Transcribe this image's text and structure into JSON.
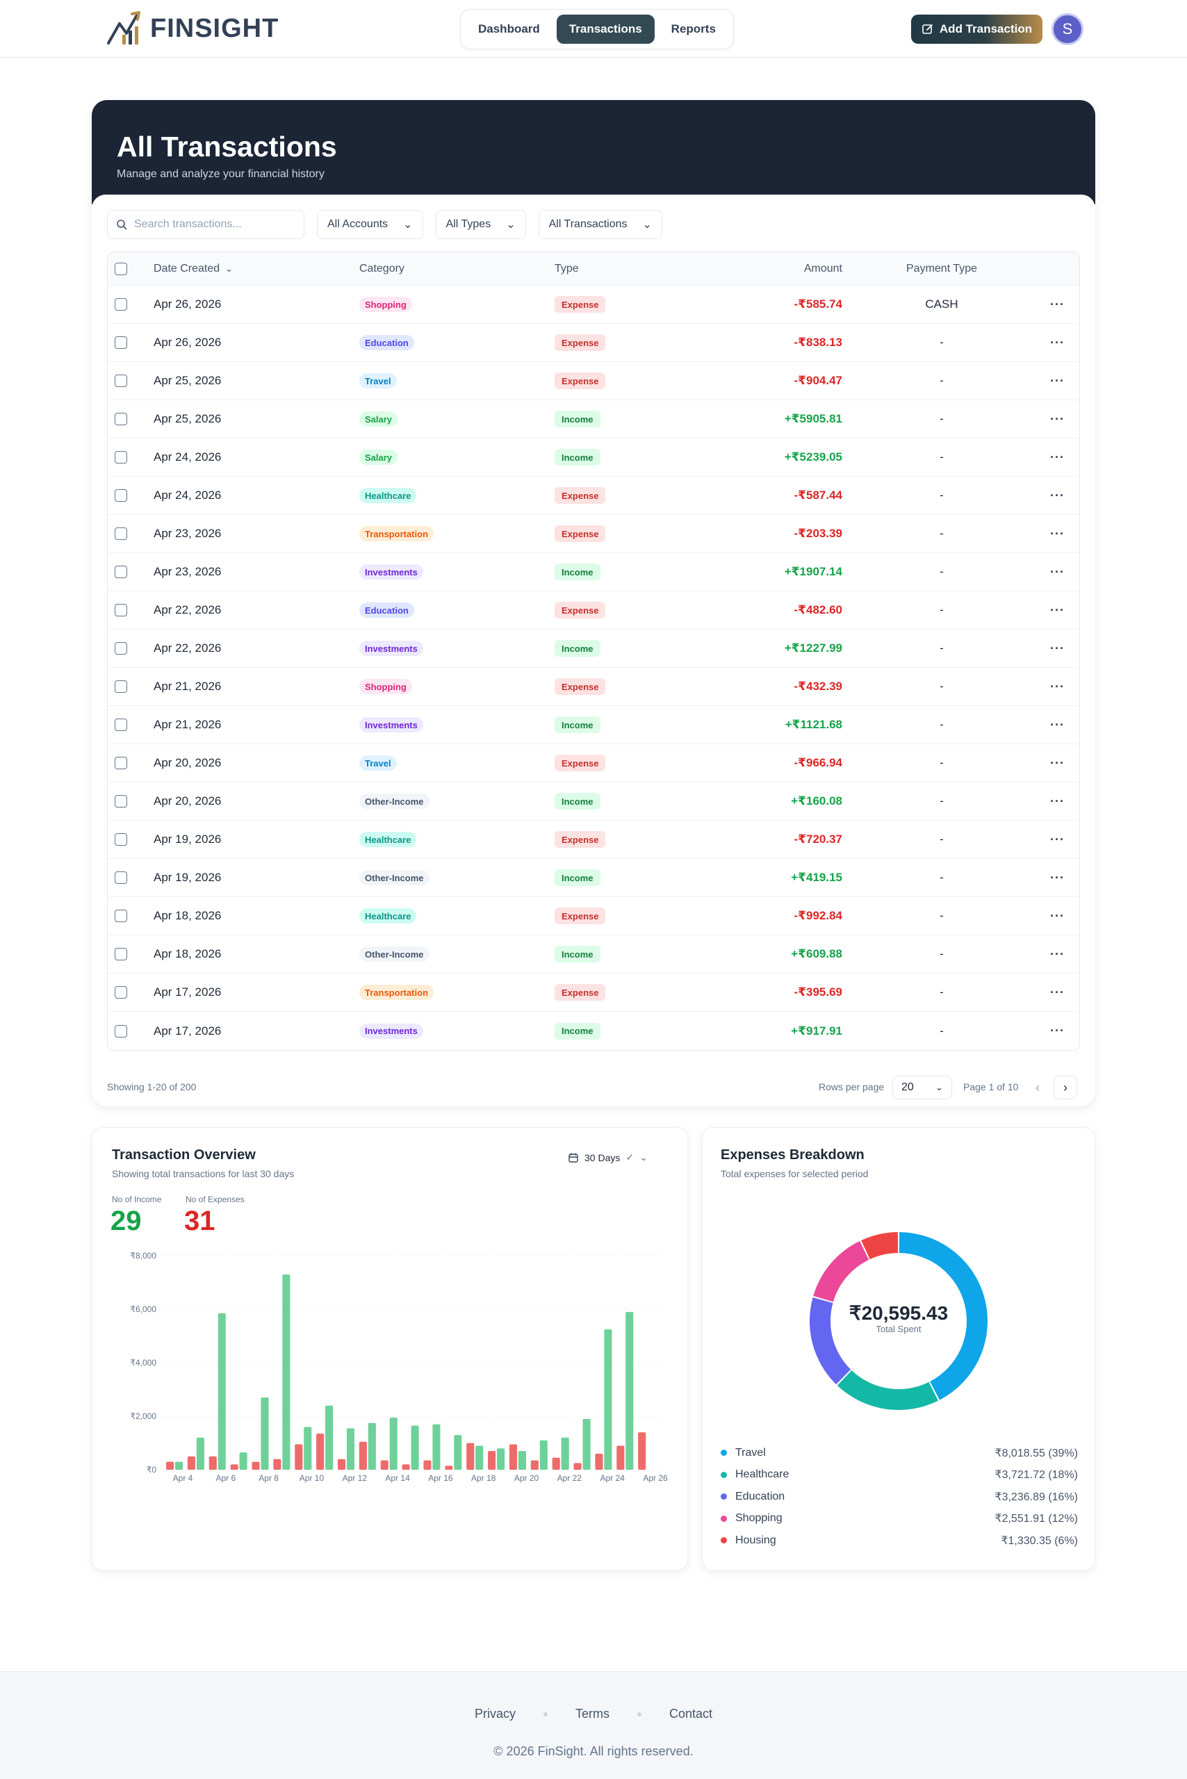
{
  "brand": {
    "name": "FINSIGHT"
  },
  "nav": {
    "items": [
      "Dashboard",
      "Transactions",
      "Reports"
    ],
    "active": 1
  },
  "header": {
    "add_label": "Add Transaction",
    "avatar_initial": "S"
  },
  "page": {
    "title": "All Transactions",
    "subtitle": "Manage and analyze your financial history"
  },
  "filters": {
    "search_placeholder": "Search transactions...",
    "accounts": "All Accounts",
    "types": "All Types",
    "transactions": "All Transactions"
  },
  "table": {
    "headers": {
      "date": "Date Created",
      "category": "Category",
      "type": "Type",
      "amount": "Amount",
      "payment": "Payment Type"
    },
    "rows": [
      {
        "date": "Apr 26, 2026",
        "category": "Shopping",
        "type": "Expense",
        "amount": "-₹585.74",
        "payment": "CASH"
      },
      {
        "date": "Apr 26, 2026",
        "category": "Education",
        "type": "Expense",
        "amount": "-₹838.13",
        "payment": "-"
      },
      {
        "date": "Apr 25, 2026",
        "category": "Travel",
        "type": "Expense",
        "amount": "-₹904.47",
        "payment": "-"
      },
      {
        "date": "Apr 25, 2026",
        "category": "Salary",
        "type": "Income",
        "amount": "+₹5905.81",
        "payment": "-"
      },
      {
        "date": "Apr 24, 2026",
        "category": "Salary",
        "type": "Income",
        "amount": "+₹5239.05",
        "payment": "-"
      },
      {
        "date": "Apr 24, 2026",
        "category": "Healthcare",
        "type": "Expense",
        "amount": "-₹587.44",
        "payment": "-"
      },
      {
        "date": "Apr 23, 2026",
        "category": "Transportation",
        "type": "Expense",
        "amount": "-₹203.39",
        "payment": "-"
      },
      {
        "date": "Apr 23, 2026",
        "category": "Investments",
        "type": "Income",
        "amount": "+₹1907.14",
        "payment": "-"
      },
      {
        "date": "Apr 22, 2026",
        "category": "Education",
        "type": "Expense",
        "amount": "-₹482.60",
        "payment": "-"
      },
      {
        "date": "Apr 22, 2026",
        "category": "Investments",
        "type": "Income",
        "amount": "+₹1227.99",
        "payment": "-"
      },
      {
        "date": "Apr 21, 2026",
        "category": "Shopping",
        "type": "Expense",
        "amount": "-₹432.39",
        "payment": "-"
      },
      {
        "date": "Apr 21, 2026",
        "category": "Investments",
        "type": "Income",
        "amount": "+₹1121.68",
        "payment": "-"
      },
      {
        "date": "Apr 20, 2026",
        "category": "Travel",
        "type": "Expense",
        "amount": "-₹966.94",
        "payment": "-"
      },
      {
        "date": "Apr 20, 2026",
        "category": "Other-Income",
        "type": "Income",
        "amount": "+₹160.08",
        "payment": "-"
      },
      {
        "date": "Apr 19, 2026",
        "category": "Healthcare",
        "type": "Expense",
        "amount": "-₹720.37",
        "payment": "-"
      },
      {
        "date": "Apr 19, 2026",
        "category": "Other-Income",
        "type": "Income",
        "amount": "+₹419.15",
        "payment": "-"
      },
      {
        "date": "Apr 18, 2026",
        "category": "Healthcare",
        "type": "Expense",
        "amount": "-₹992.84",
        "payment": "-"
      },
      {
        "date": "Apr 18, 2026",
        "category": "Other-Income",
        "type": "Income",
        "amount": "+₹609.88",
        "payment": "-"
      },
      {
        "date": "Apr 17, 2026",
        "category": "Transportation",
        "type": "Expense",
        "amount": "-₹395.69",
        "payment": "-"
      },
      {
        "date": "Apr 17, 2026",
        "category": "Investments",
        "type": "Income",
        "amount": "+₹917.91",
        "payment": "-"
      }
    ]
  },
  "category_colors": {
    "Shopping": {
      "bg": "#fce7f3",
      "fg": "#db2777"
    },
    "Education": {
      "bg": "#e0e7ff",
      "fg": "#4f46e5"
    },
    "Travel": {
      "bg": "#e0f2fe",
      "fg": "#0284c7"
    },
    "Salary": {
      "bg": "#dcfce7",
      "fg": "#16a34a"
    },
    "Healthcare": {
      "bg": "#ccfbf1",
      "fg": "#0d9488"
    },
    "Transportation": {
      "bg": "#ffedd5",
      "fg": "#ea580c"
    },
    "Investments": {
      "bg": "#ede9fe",
      "fg": "#6d28d9"
    },
    "Other-Income": {
      "bg": "#f1f5f9",
      "fg": "#475569"
    }
  },
  "pagination": {
    "showing": "Showing 1-20 of 200",
    "rows_label": "Rows per page",
    "rows_value": "20",
    "page_label": "Page 1 of 10"
  },
  "overview": {
    "title": "Transaction Overview",
    "subtitle": "Showing total transactions for last 30 days",
    "range": "30 Days",
    "income_label": "No of Income",
    "income_count": "29",
    "expense_label": "No of Expenses",
    "expense_count": "31"
  },
  "breakdown": {
    "title": "Expenses Breakdown",
    "subtitle": "Total expenses for selected period",
    "total": "₹20,595.43",
    "total_label": "Total Spent",
    "items": [
      {
        "name": "Travel",
        "value": "₹8,018.55 (39%)",
        "color": "#0ea5e9"
      },
      {
        "name": "Healthcare",
        "value": "₹3,721.72 (18%)",
        "color": "#14b8a6"
      },
      {
        "name": "Education",
        "value": "₹3,236.89 (16%)",
        "color": "#6366f1"
      },
      {
        "name": "Shopping",
        "value": "₹2,551.91 (12%)",
        "color": "#ec4899"
      },
      {
        "name": "Housing",
        "value": "₹1,330.35 (6%)",
        "color": "#ef4444"
      }
    ]
  },
  "chart_data": [
    {
      "type": "bar",
      "title": "Transaction Overview",
      "x_labels": [
        "Apr 4",
        "Apr 6",
        "Apr 8",
        "Apr 10",
        "Apr 12",
        "Apr 14",
        "Apr 16",
        "Apr 18",
        "Apr 20",
        "Apr 22",
        "Apr 24",
        "Apr 26"
      ],
      "y_ticks": [
        "₹0",
        "₹2,000",
        "₹4,000",
        "₹6,000",
        "₹8,000"
      ],
      "ylim": [
        0,
        8000
      ],
      "grid": true,
      "colors": {
        "income": "#6fd19a",
        "expense": "#ee6b6b"
      },
      "series": [
        {
          "kind": "income",
          "values": [
            300,
            1200,
            5850,
            650,
            2700,
            7300,
            1600,
            2400,
            1550,
            1750,
            1950,
            1650,
            1700,
            1300,
            900,
            800,
            700,
            1100,
            1200,
            1900,
            5250,
            5900
          ]
        },
        {
          "kind": "expense",
          "values": [
            300,
            500,
            500,
            200,
            300,
            400,
            950,
            1350,
            400,
            1050,
            350,
            200,
            350,
            150,
            1000,
            700,
            950,
            350,
            450,
            250,
            600,
            900,
            1400
          ]
        }
      ]
    },
    {
      "type": "pie",
      "title": "Expenses Breakdown",
      "labels": [
        "Travel",
        "Healthcare",
        "Education",
        "Shopping",
        "Housing"
      ],
      "values": [
        8018.55,
        3721.72,
        3236.89,
        2551.91,
        1330.35
      ],
      "percent": [
        39,
        18,
        16,
        12,
        6
      ],
      "colors": [
        "#0ea5e9",
        "#14b8a6",
        "#6366f1",
        "#ec4899",
        "#ef4444"
      ]
    }
  ],
  "footer": {
    "links": [
      "Privacy",
      "Terms",
      "Contact"
    ],
    "copyright": "© 2026 FinSight. All rights reserved."
  }
}
